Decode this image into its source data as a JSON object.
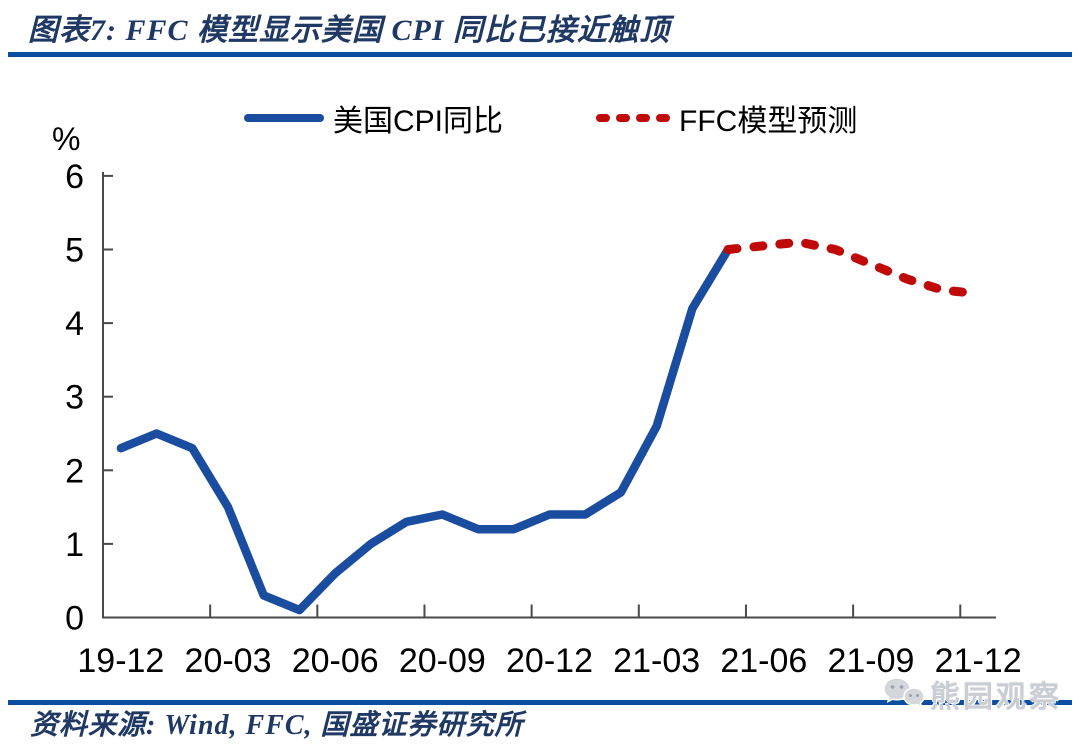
{
  "header": {
    "figure_label": "图表7:",
    "title": "图表7: FFC 模型显示美国 CPI 同比已接近触顶"
  },
  "chart_data": {
    "type": "line",
    "title": "FFC模型显示美国CPI同比已接近触顶",
    "ylabel": "%",
    "xlabel": "",
    "ylim": [
      0,
      6
    ],
    "y_ticks": [
      0,
      1,
      2,
      3,
      4,
      5,
      6
    ],
    "grid": false,
    "legend_position": "top",
    "x": [
      "19-12",
      "20-01",
      "20-02",
      "20-03",
      "20-04",
      "20-05",
      "20-06",
      "20-07",
      "20-08",
      "20-09",
      "20-10",
      "20-11",
      "20-12",
      "21-01",
      "21-02",
      "21-03",
      "21-04",
      "21-05",
      "21-06",
      "21-07",
      "21-08",
      "21-09",
      "21-10",
      "21-11",
      "21-12"
    ],
    "x_tick_every": 3,
    "x_tick_labels": [
      "19-12",
      "20-03",
      "20-06",
      "20-09",
      "20-12",
      "21-03",
      "21-06",
      "21-09",
      "21-12"
    ],
    "series": [
      {
        "name": "美国CPI同比",
        "color": "#1A4C9F",
        "style": "solid",
        "start_index": 0,
        "values": [
          2.3,
          2.5,
          2.3,
          1.5,
          0.3,
          0.1,
          0.6,
          1.0,
          1.3,
          1.4,
          1.2,
          1.2,
          1.4,
          1.4,
          1.7,
          2.6,
          4.2,
          5.0
        ]
      },
      {
        "name": "FFC模型预测",
        "color": "#C00A0A",
        "style": "dashed",
        "start_index": 17,
        "values": [
          5.0,
          5.05,
          5.1,
          5.0,
          4.8,
          4.6,
          4.45,
          4.4
        ]
      }
    ]
  },
  "footer": {
    "source": "资料来源: Wind, FFC, 国盛证券研究所"
  },
  "watermark": {
    "text": "熊园观察",
    "icon": "wechat-icon"
  },
  "colors": {
    "title_navy": "#1F3864",
    "rule_blue": "#0B4EA2",
    "axis_gray": "#4a4a4a",
    "tick_label_black": "#000000",
    "watermark_gray": "#c9ced4"
  }
}
